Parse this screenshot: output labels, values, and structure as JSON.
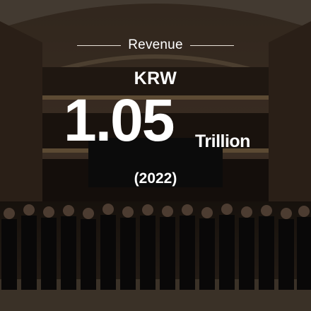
{
  "metric": {
    "label": "Revenue",
    "currency": "KRW",
    "value": "1.05",
    "unit": "Trillion",
    "year": "(2022)"
  },
  "colors": {
    "text": "#ffffff",
    "rule": "#e8e2da",
    "overlay": "rgba(0,0,0,0.45)"
  }
}
